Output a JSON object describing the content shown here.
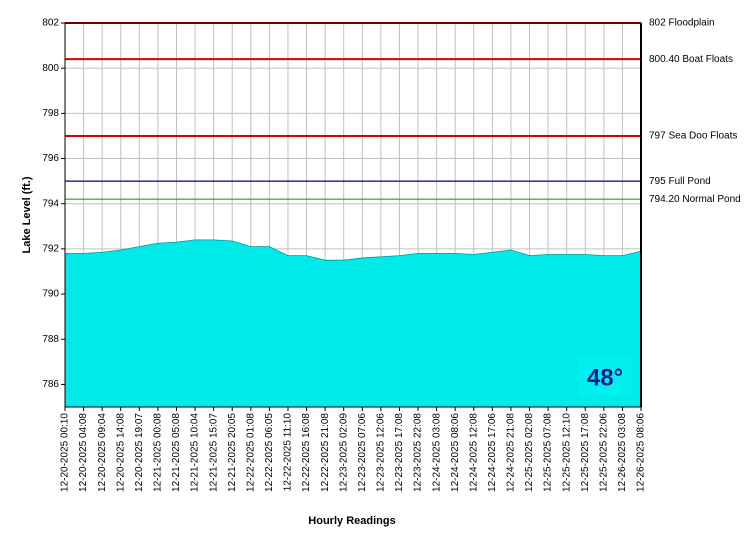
{
  "chart_data": {
    "type": "area",
    "x_label": "Hourly Readings",
    "y_label": "Lake Level (ft.)",
    "badge": "48°",
    "categories": [
      "12-20-2025 00:10",
      "12-20-2025 04:08",
      "12-20-2025 09:04",
      "12-20-2025 14:08",
      "12-20-2025 19:07",
      "12-21-2025 00:08",
      "12-21-2025 05:08",
      "12-21-2025 10:04",
      "12-21-2025 15:07",
      "12-21-2025 20:05",
      "12-22-2025 01:08",
      "12-22-2025 06:05",
      "12-22-2025 11:10",
      "12-22-2025 16:08",
      "12-22-2025 21:08",
      "12-23-2025 02:09",
      "12-23-2025 07:06",
      "12-23-2025 12:06",
      "12-23-2025 17:08",
      "12-23-2025 22:08",
      "12-24-2025 03:08",
      "12-24-2025 08:06",
      "12-24-2025 12:08",
      "12-24-2025 17:06",
      "12-24-2025 21:08",
      "12-25-2025 02:08",
      "12-25-2025 07:08",
      "12-25-2025 12:10",
      "12-25-2025 17:08",
      "12-25-2025 22:06",
      "12-26-2025 03:08",
      "12-26-2025 08:06"
    ],
    "values": [
      791.8,
      791.8,
      791.85,
      791.95,
      792.1,
      792.25,
      792.3,
      792.4,
      792.4,
      792.35,
      792.1,
      792.1,
      791.7,
      791.7,
      791.5,
      791.5,
      791.6,
      791.65,
      791.7,
      791.8,
      791.8,
      791.8,
      791.75,
      791.85,
      791.95,
      791.7,
      791.75,
      791.75,
      791.75,
      791.7,
      791.7,
      791.9
    ],
    "color": "#00eaea",
    "ylim": [
      785,
      802
    ],
    "yticks": [
      786,
      788,
      790,
      792,
      794,
      796,
      798,
      800,
      802
    ],
    "grid": true,
    "reference_lines": [
      {
        "value": 802,
        "label": "802 Floodplain",
        "color": "#dd0000"
      },
      {
        "value": 800.4,
        "label": "800.40 Boat Floats",
        "color": "#dd0000"
      },
      {
        "value": 797,
        "label": "797 Sea Doo Floats",
        "color": "#dd0000"
      },
      {
        "value": 795,
        "label": "795 Full Pond",
        "color": "#000080"
      },
      {
        "value": 794.2,
        "label": "794.20 Normal Pond",
        "color": "#339933"
      }
    ]
  }
}
